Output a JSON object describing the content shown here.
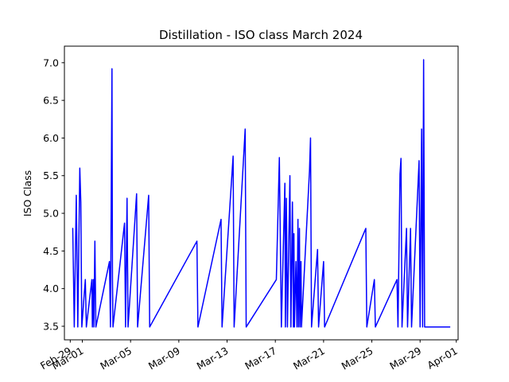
{
  "chart_data": {
    "type": "line",
    "title": "Distillation - ISO class March 2024",
    "ylabel": "ISO Class",
    "xlabel": "",
    "ylim": [
      3.32,
      7.22
    ],
    "xlim": [
      "2024-02-28T12:24",
      "2024-04-01T03:36"
    ],
    "grid": false,
    "color": "#0000ff",
    "y_ticks": [
      3.5,
      4.0,
      4.5,
      5.0,
      5.5,
      6.0,
      6.5,
      7.0
    ],
    "y_tick_labels": [
      "3.5",
      "4.0",
      "4.5",
      "5.0",
      "5.5",
      "6.0",
      "6.5",
      "7.0"
    ],
    "x_ticks": [
      "2024-02-29",
      "2024-03-01",
      "2024-03-05",
      "2024-03-09",
      "2024-03-13",
      "2024-03-17",
      "2024-03-21",
      "2024-03-25",
      "2024-03-29",
      "2024-04-01"
    ],
    "x_tick_labels": [
      "Feb-29",
      "Mar-01",
      "Mar-05",
      "Mar-09",
      "Mar-13",
      "Mar-17",
      "Mar-21",
      "Mar-25",
      "Mar-29",
      "Apr-01"
    ],
    "series": [
      {
        "name": "",
        "points": [
          [
            "2024-02-29T05:00",
            4.8
          ],
          [
            "2024-02-29T08:00",
            3.49
          ],
          [
            "2024-02-29T12:00",
            5.24
          ],
          [
            "2024-02-29T15:00",
            3.49
          ],
          [
            "2024-02-29T19:00",
            5.6
          ],
          [
            "2024-02-29T21:00",
            5.15
          ],
          [
            "2024-02-29T23:00",
            3.49
          ],
          [
            "2024-03-01T06:00",
            4.12
          ],
          [
            "2024-03-01T08:00",
            3.49
          ],
          [
            "2024-03-01T19:00",
            4.12
          ],
          [
            "2024-03-01T20:00",
            3.49
          ],
          [
            "2024-03-01T22:00",
            4.12
          ],
          [
            "2024-03-01T23:00",
            3.49
          ],
          [
            "2024-03-02T01:00",
            4.63
          ],
          [
            "2024-03-02T03:00",
            3.49
          ],
          [
            "2024-03-03T06:00",
            4.36
          ],
          [
            "2024-03-03T08:00",
            3.49
          ],
          [
            "2024-03-03T11:00",
            6.92
          ],
          [
            "2024-03-03T12:00",
            4.12
          ],
          [
            "2024-03-03T13:00",
            3.49
          ],
          [
            "2024-03-04T12:00",
            4.87
          ],
          [
            "2024-03-04T14:00",
            3.49
          ],
          [
            "2024-03-04T17:00",
            5.2
          ],
          [
            "2024-03-04T19:00",
            3.49
          ],
          [
            "2024-03-05T12:00",
            5.26
          ],
          [
            "2024-03-05T14:00",
            3.49
          ],
          [
            "2024-03-06T12:00",
            5.24
          ],
          [
            "2024-03-06T14:00",
            3.49
          ],
          [
            "2024-03-10T12:00",
            4.63
          ],
          [
            "2024-03-10T14:00",
            3.49
          ],
          [
            "2024-03-12T12:00",
            4.92
          ],
          [
            "2024-03-12T14:00",
            3.49
          ],
          [
            "2024-03-13T12:00",
            5.76
          ],
          [
            "2024-03-13T14:00",
            3.49
          ],
          [
            "2024-03-14T12:00",
            6.12
          ],
          [
            "2024-03-14T14:00",
            3.49
          ],
          [
            "2024-03-17T02:00",
            4.12
          ],
          [
            "2024-03-17T08:00",
            5.74
          ],
          [
            "2024-03-17T12:00",
            3.49
          ],
          [
            "2024-03-17T19:00",
            5.4
          ],
          [
            "2024-03-17T20:00",
            3.49
          ],
          [
            "2024-03-17T22:00",
            5.2
          ],
          [
            "2024-03-18T00:00",
            3.49
          ],
          [
            "2024-03-18T05:00",
            5.5
          ],
          [
            "2024-03-18T07:00",
            3.49
          ],
          [
            "2024-03-18T10:00",
            5.15
          ],
          [
            "2024-03-18T12:00",
            3.49
          ],
          [
            "2024-03-18T13:00",
            4.73
          ],
          [
            "2024-03-18T14:00",
            3.49
          ],
          [
            "2024-03-18T17:00",
            4.36
          ],
          [
            "2024-03-18T19:00",
            3.49
          ],
          [
            "2024-03-18T21:00",
            4.92
          ],
          [
            "2024-03-18T22:00",
            3.49
          ],
          [
            "2024-03-19T00:00",
            4.8
          ],
          [
            "2024-03-19T01:00",
            3.49
          ],
          [
            "2024-03-19T03:00",
            4.36
          ],
          [
            "2024-03-19T04:00",
            3.49
          ],
          [
            "2024-03-19T20:00",
            5.57
          ],
          [
            "2024-03-19T22:00",
            6.0
          ],
          [
            "2024-03-20T00:00",
            3.49
          ],
          [
            "2024-03-20T12:00",
            4.52
          ],
          [
            "2024-03-20T14:00",
            3.49
          ],
          [
            "2024-03-21T00:00",
            4.36
          ],
          [
            "2024-03-21T02:00",
            3.49
          ],
          [
            "2024-03-24T12:00",
            4.8
          ],
          [
            "2024-03-24T14:00",
            3.49
          ],
          [
            "2024-03-25T05:00",
            4.12
          ],
          [
            "2024-03-25T07:00",
            3.49
          ],
          [
            "2024-03-27T02:00",
            4.12
          ],
          [
            "2024-03-27T04:00",
            3.49
          ],
          [
            "2024-03-27T08:00",
            5.52
          ],
          [
            "2024-03-27T10:00",
            5.73
          ],
          [
            "2024-03-27T12:00",
            3.49
          ],
          [
            "2024-03-27T21:00",
            4.8
          ],
          [
            "2024-03-27T23:00",
            3.49
          ],
          [
            "2024-03-28T05:00",
            4.8
          ],
          [
            "2024-03-28T07:00",
            3.49
          ],
          [
            "2024-03-28T22:00",
            5.7
          ],
          [
            "2024-03-29T00:00",
            3.49
          ],
          [
            "2024-03-29T03:00",
            6.12
          ],
          [
            "2024-03-29T05:00",
            3.49
          ],
          [
            "2024-03-29T07:00",
            7.04
          ],
          [
            "2024-03-29T09:00",
            3.49
          ]
        ],
        "end": "2024-03-31T12:00",
        "baseline": 3.49,
        "start": "2024-02-29T04:00"
      }
    ]
  }
}
